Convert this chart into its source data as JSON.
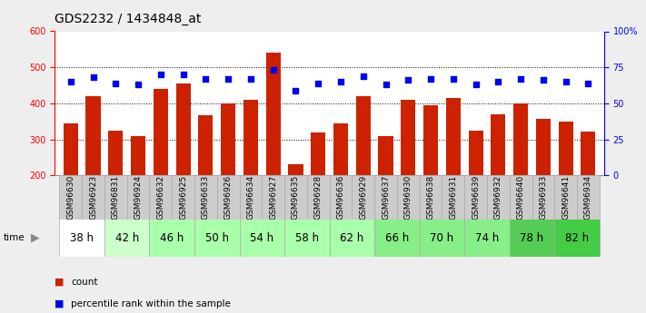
{
  "title": "GDS2232 / 1434848_at",
  "samples": [
    "GSM96630",
    "GSM96923",
    "GSM96831",
    "GSM96924",
    "GSM96632",
    "GSM96925",
    "GSM96633",
    "GSM96926",
    "GSM96634",
    "GSM96927",
    "GSM96635",
    "GSM96928",
    "GSM96636",
    "GSM96929",
    "GSM96637",
    "GSM96930",
    "GSM96638",
    "GSM96931",
    "GSM96639",
    "GSM96932",
    "GSM96640",
    "GSM96933",
    "GSM96641",
    "GSM96934"
  ],
  "counts": [
    345,
    420,
    323,
    308,
    440,
    455,
    367,
    400,
    410,
    540,
    230,
    320,
    345,
    420,
    310,
    410,
    395,
    415,
    325,
    370,
    400,
    358,
    348,
    322
  ],
  "percentile": [
    65,
    68,
    64,
    63,
    70,
    70,
    67,
    67,
    67,
    73,
    59,
    64,
    65,
    69,
    63,
    66,
    67,
    67,
    63,
    65,
    67,
    66,
    65,
    64
  ],
  "time_groups": [
    {
      "label": "38 h",
      "indices": [
        0,
        1
      ],
      "color": "#ffffff"
    },
    {
      "label": "42 h",
      "indices": [
        2,
        3
      ],
      "color": "#ccffcc"
    },
    {
      "label": "46 h",
      "indices": [
        4,
        5
      ],
      "color": "#aaffaa"
    },
    {
      "label": "50 h",
      "indices": [
        6,
        7
      ],
      "color": "#aaffaa"
    },
    {
      "label": "54 h",
      "indices": [
        8,
        9
      ],
      "color": "#aaffaa"
    },
    {
      "label": "58 h",
      "indices": [
        10,
        11
      ],
      "color": "#aaffaa"
    },
    {
      "label": "62 h",
      "indices": [
        12,
        13
      ],
      "color": "#aaffaa"
    },
    {
      "label": "66 h",
      "indices": [
        14,
        15
      ],
      "color": "#88ee88"
    },
    {
      "label": "70 h",
      "indices": [
        16,
        17
      ],
      "color": "#88ee88"
    },
    {
      "label": "74 h",
      "indices": [
        18,
        19
      ],
      "color": "#88ee88"
    },
    {
      "label": "78 h",
      "indices": [
        20,
        21
      ],
      "color": "#55cc55"
    },
    {
      "label": "82 h",
      "indices": [
        22,
        23
      ],
      "color": "#44cc44"
    }
  ],
  "bar_color": "#cc2200",
  "dot_color": "#0000ee",
  "ylim_left": [
    200,
    600
  ],
  "ylim_right": [
    0,
    100
  ],
  "yticks_left": [
    200,
    300,
    400,
    500,
    600
  ],
  "yticks_right": [
    0,
    25,
    50,
    75,
    100
  ],
  "ytick_labels_right": [
    "0",
    "25",
    "50",
    "75",
    "100%"
  ],
  "background_color": "#eeeeee",
  "plot_bg_color": "#ffffff",
  "sample_cell_color": "#cccccc",
  "title_fontsize": 10,
  "tick_fontsize": 7,
  "sample_fontsize": 6.5,
  "group_fontsize": 8.5
}
